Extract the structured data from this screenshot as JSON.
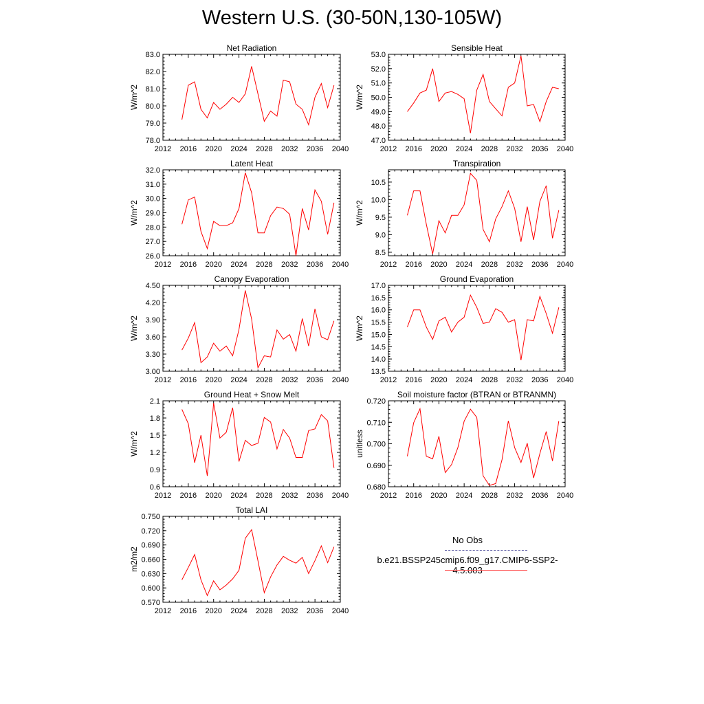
{
  "page": {
    "title": "Western U.S. (30-50N,130-105W)"
  },
  "legend": {
    "entries": [
      {
        "label": "No Obs",
        "color": "#6666aa",
        "dash": true
      },
      {
        "label": "b.e21.BSSP245cmip6.f09_g17.CMIP6-SSP2-4.5.003",
        "color": "#ff5555",
        "dash": false
      }
    ]
  },
  "chart_data": [
    {
      "type": "line",
      "title": "Net Radiation",
      "ylabel": "W/m^2",
      "xlim": [
        2012,
        2040
      ],
      "xticks": [
        2012,
        2016,
        2020,
        2024,
        2028,
        2032,
        2036,
        2040
      ],
      "ylim": [
        78.0,
        83.0
      ],
      "yticks": [
        "78.0",
        "79.0",
        "80.0",
        "81.0",
        "82.0",
        "83.0"
      ],
      "x": [
        2015,
        2016,
        2017,
        2018,
        2019,
        2020,
        2021,
        2022,
        2023,
        2024,
        2025,
        2026,
        2027,
        2028,
        2029,
        2030,
        2031,
        2032,
        2033,
        2034,
        2035,
        2036,
        2037,
        2038,
        2039
      ],
      "series": [
        {
          "color": "#ff0000",
          "values": [
            79.2,
            81.2,
            81.4,
            79.8,
            79.3,
            80.2,
            79.8,
            80.1,
            80.5,
            80.2,
            80.7,
            82.3,
            80.7,
            79.1,
            79.7,
            79.4,
            81.5,
            81.4,
            80.1,
            79.8,
            78.9,
            80.5,
            81.3,
            79.9,
            81.2
          ]
        }
      ]
    },
    {
      "type": "line",
      "title": "Sensible Heat",
      "ylabel": "W/m^2",
      "xlim": [
        2012,
        2040
      ],
      "xticks": [
        2012,
        2016,
        2020,
        2024,
        2028,
        2032,
        2036,
        2040
      ],
      "ylim": [
        47.0,
        53.0
      ],
      "yticks": [
        "47.0",
        "48.0",
        "49.0",
        "50.0",
        "51.0",
        "52.0",
        "53.0"
      ],
      "x": [
        2015,
        2016,
        2017,
        2018,
        2019,
        2020,
        2021,
        2022,
        2023,
        2024,
        2025,
        2026,
        2027,
        2028,
        2029,
        2030,
        2031,
        2032,
        2033,
        2034,
        2035,
        2036,
        2037,
        2038,
        2039
      ],
      "series": [
        {
          "color": "#ff0000",
          "values": [
            49.0,
            49.6,
            50.3,
            50.5,
            52.0,
            49.7,
            50.3,
            50.4,
            50.2,
            49.9,
            47.5,
            50.5,
            51.6,
            49.7,
            49.2,
            48.7,
            50.7,
            51.0,
            52.9,
            49.4,
            49.5,
            48.3,
            49.7,
            50.7,
            50.6
          ]
        }
      ]
    },
    {
      "type": "line",
      "title": "Latent Heat",
      "ylabel": "W/m^2",
      "xlim": [
        2012,
        2040
      ],
      "xticks": [
        2012,
        2016,
        2020,
        2024,
        2028,
        2032,
        2036,
        2040
      ],
      "ylim": [
        26.0,
        32.0
      ],
      "yticks": [
        "26.0",
        "27.0",
        "28.0",
        "29.0",
        "30.0",
        "31.0",
        "32.0"
      ],
      "x": [
        2015,
        2016,
        2017,
        2018,
        2019,
        2020,
        2021,
        2022,
        2023,
        2024,
        2025,
        2026,
        2027,
        2028,
        2029,
        2030,
        2031,
        2032,
        2033,
        2034,
        2035,
        2036,
        2037,
        2038,
        2039
      ],
      "series": [
        {
          "color": "#ff0000",
          "values": [
            28.2,
            29.9,
            30.1,
            27.7,
            26.5,
            28.4,
            28.1,
            28.1,
            28.3,
            29.3,
            31.8,
            30.4,
            27.6,
            27.6,
            28.8,
            29.4,
            29.3,
            28.9,
            26.0,
            29.3,
            27.8,
            30.6,
            29.8,
            27.5,
            29.7
          ]
        }
      ]
    },
    {
      "type": "line",
      "title": "Transpiration",
      "ylabel": "W/m^2",
      "xlim": [
        2012,
        2040
      ],
      "xticks": [
        2012,
        2016,
        2020,
        2024,
        2028,
        2032,
        2036,
        2040
      ],
      "ylim": [
        8.4,
        10.85
      ],
      "yticks": [
        "8.5",
        "9.0",
        "9.5",
        "10.0",
        "10.5"
      ],
      "x": [
        2015,
        2016,
        2017,
        2018,
        2019,
        2020,
        2021,
        2022,
        2023,
        2024,
        2025,
        2026,
        2027,
        2028,
        2029,
        2030,
        2031,
        2032,
        2033,
        2034,
        2035,
        2036,
        2037,
        2038,
        2039
      ],
      "series": [
        {
          "color": "#ff0000",
          "values": [
            9.55,
            10.25,
            10.25,
            9.3,
            8.45,
            9.4,
            9.05,
            9.55,
            9.55,
            9.85,
            10.75,
            10.55,
            9.15,
            8.8,
            9.45,
            9.8,
            10.25,
            9.75,
            8.8,
            9.8,
            8.85,
            9.95,
            10.4,
            8.9,
            9.7
          ]
        }
      ]
    },
    {
      "type": "line",
      "title": "Canopy Evaporation",
      "ylabel": "W/m^2",
      "xlim": [
        2012,
        2040
      ],
      "xticks": [
        2012,
        2016,
        2020,
        2024,
        2028,
        2032,
        2036,
        2040
      ],
      "ylim": [
        3.0,
        4.5
      ],
      "yticks": [
        "3.00",
        "3.30",
        "3.60",
        "3.90",
        "4.20",
        "4.50"
      ],
      "x": [
        2015,
        2016,
        2017,
        2018,
        2019,
        2020,
        2021,
        2022,
        2023,
        2024,
        2025,
        2026,
        2027,
        2028,
        2029,
        2030,
        2031,
        2032,
        2033,
        2034,
        2035,
        2036,
        2037,
        2038,
        2039
      ],
      "series": [
        {
          "color": "#ff0000",
          "values": [
            3.37,
            3.58,
            3.85,
            3.15,
            3.25,
            3.49,
            3.35,
            3.44,
            3.27,
            3.73,
            4.41,
            3.91,
            3.06,
            3.27,
            3.25,
            3.72,
            3.56,
            3.64,
            3.35,
            3.92,
            3.44,
            4.09,
            3.6,
            3.55,
            3.88
          ]
        }
      ]
    },
    {
      "type": "line",
      "title": "Ground Evaporation",
      "ylabel": "W/m^2",
      "xlim": [
        2012,
        2040
      ],
      "xticks": [
        2012,
        2016,
        2020,
        2024,
        2028,
        2032,
        2036,
        2040
      ],
      "ylim": [
        13.5,
        17.0
      ],
      "yticks": [
        "13.5",
        "14.0",
        "14.5",
        "15.0",
        "15.5",
        "16.0",
        "16.5",
        "17.0"
      ],
      "x": [
        2015,
        2016,
        2017,
        2018,
        2019,
        2020,
        2021,
        2022,
        2023,
        2024,
        2025,
        2026,
        2027,
        2028,
        2029,
        2030,
        2031,
        2032,
        2033,
        2034,
        2035,
        2036,
        2037,
        2038,
        2039
      ],
      "series": [
        {
          "color": "#ff0000",
          "values": [
            15.3,
            16.0,
            16.0,
            15.3,
            14.8,
            15.55,
            15.7,
            15.1,
            15.5,
            15.7,
            16.6,
            16.1,
            15.45,
            15.5,
            16.05,
            15.9,
            15.5,
            15.6,
            13.95,
            15.6,
            15.55,
            16.55,
            15.85,
            15.05,
            16.1
          ]
        }
      ]
    },
    {
      "type": "line",
      "title": "Ground Heat + Snow Melt",
      "ylabel": "W/m^2",
      "xlim": [
        2012,
        2040
      ],
      "xticks": [
        2012,
        2016,
        2020,
        2024,
        2028,
        2032,
        2036,
        2040
      ],
      "ylim": [
        0.6,
        2.1
      ],
      "yticks": [
        "0.6",
        "0.9",
        "1.2",
        "1.5",
        "1.8",
        "2.1"
      ],
      "x": [
        2015,
        2016,
        2017,
        2018,
        2019,
        2020,
        2021,
        2022,
        2023,
        2024,
        2025,
        2026,
        2027,
        2028,
        2029,
        2030,
        2031,
        2032,
        2033,
        2034,
        2035,
        2036,
        2037,
        2038,
        2039
      ],
      "series": [
        {
          "color": "#ff0000",
          "values": [
            1.95,
            1.7,
            1.02,
            1.5,
            0.79,
            2.06,
            1.45,
            1.55,
            1.98,
            1.04,
            1.41,
            1.32,
            1.36,
            1.81,
            1.73,
            1.26,
            1.6,
            1.45,
            1.11,
            1.11,
            1.58,
            1.61,
            1.86,
            1.75,
            0.93
          ]
        }
      ]
    },
    {
      "type": "line",
      "title": "Soil moisture factor (BTRAN or BTRANMN)",
      "ylabel": "unitless",
      "xlim": [
        2012,
        2040
      ],
      "xticks": [
        2012,
        2016,
        2020,
        2024,
        2028,
        2032,
        2036,
        2040
      ],
      "ylim": [
        0.68,
        0.72
      ],
      "yticks": [
        "0.680",
        "0.690",
        "0.700",
        "0.710",
        "0.720"
      ],
      "x": [
        2015,
        2016,
        2017,
        2018,
        2019,
        2020,
        2021,
        2022,
        2023,
        2024,
        2025,
        2026,
        2027,
        2028,
        2029,
        2030,
        2031,
        2032,
        2033,
        2034,
        2035,
        2036,
        2037,
        2038,
        2039
      ],
      "series": [
        {
          "color": "#ff0000",
          "values": [
            0.6942,
            0.7098,
            0.7163,
            0.6942,
            0.693,
            0.7035,
            0.6866,
            0.6903,
            0.6982,
            0.7105,
            0.7161,
            0.7123,
            0.6851,
            0.6806,
            0.6815,
            0.6926,
            0.7107,
            0.6982,
            0.6913,
            0.7003,
            0.6841,
            0.6955,
            0.7057,
            0.692,
            0.7106
          ]
        }
      ]
    },
    {
      "type": "line",
      "title": "Total LAI",
      "ylabel": "m2/m2",
      "xlim": [
        2012,
        2040
      ],
      "xticks": [
        2012,
        2016,
        2020,
        2024,
        2028,
        2032,
        2036,
        2040
      ],
      "ylim": [
        0.57,
        0.75
      ],
      "yticks": [
        "0.570",
        "0.600",
        "0.630",
        "0.660",
        "0.690",
        "0.720",
        "0.750"
      ],
      "x": [
        2015,
        2016,
        2017,
        2018,
        2019,
        2020,
        2021,
        2022,
        2023,
        2024,
        2025,
        2026,
        2027,
        2028,
        2029,
        2030,
        2031,
        2032,
        2033,
        2034,
        2035,
        2036,
        2037,
        2038,
        2039
      ],
      "series": [
        {
          "color": "#ff0000",
          "values": [
            0.617,
            0.643,
            0.67,
            0.617,
            0.584,
            0.615,
            0.596,
            0.606,
            0.619,
            0.637,
            0.704,
            0.722,
            0.657,
            0.59,
            0.623,
            0.648,
            0.666,
            0.658,
            0.652,
            0.664,
            0.63,
            0.657,
            0.688,
            0.653,
            0.686
          ]
        }
      ]
    }
  ]
}
